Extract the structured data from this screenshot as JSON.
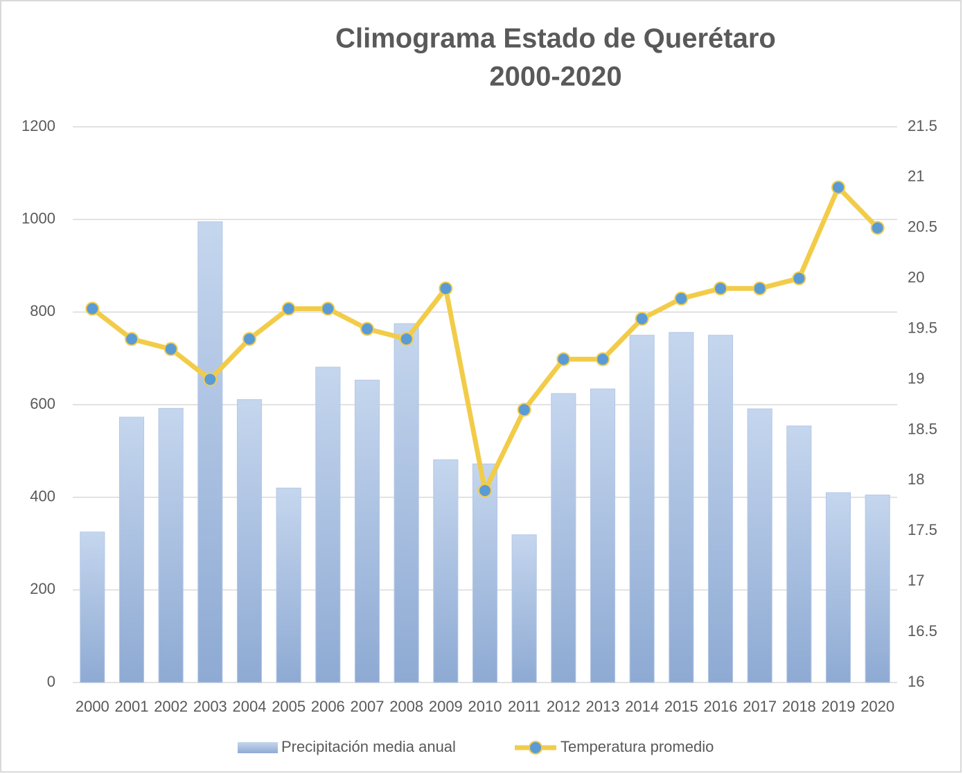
{
  "chart_data": {
    "type": "bar-line",
    "title": [
      "Climograma Estado de Querétaro",
      "2000-2020"
    ],
    "categories": [
      "2000",
      "2001",
      "2002",
      "2003",
      "2004",
      "2005",
      "2006",
      "2007",
      "2008",
      "2009",
      "2010",
      "2011",
      "2012",
      "2013",
      "2014",
      "2015",
      "2016",
      "2017",
      "2018",
      "2019",
      "2020"
    ],
    "series": [
      {
        "name": "Precipitación media anual",
        "type": "bar",
        "color": "#a9c2e6",
        "axis": "y",
        "values": [
          325,
          573,
          592,
          995,
          611,
          420,
          681,
          653,
          775,
          481,
          472,
          319,
          624,
          634,
          750,
          756,
          750,
          591,
          554,
          410,
          405
        ]
      },
      {
        "name": "Temperatura promedio",
        "type": "line",
        "color": "#f2cc49",
        "marker_color": "#5b9bd5",
        "axis": "y2",
        "values": [
          19.7,
          19.4,
          19.3,
          19.0,
          19.4,
          19.7,
          19.7,
          19.5,
          19.4,
          19.9,
          17.9,
          18.7,
          19.2,
          19.2,
          19.6,
          19.8,
          19.9,
          19.9,
          20.0,
          20.9,
          20.5
        ]
      }
    ],
    "ylim": [
      0,
      1200
    ],
    "yticks": [
      0,
      200,
      400,
      600,
      800,
      1000,
      1200
    ],
    "y2lim": [
      16,
      21.5
    ],
    "y2ticks": [
      16,
      16.5,
      17,
      17.5,
      18,
      18.5,
      19,
      19.5,
      20,
      20.5,
      21,
      21.5
    ],
    "grid": true,
    "legend": "bottom"
  }
}
